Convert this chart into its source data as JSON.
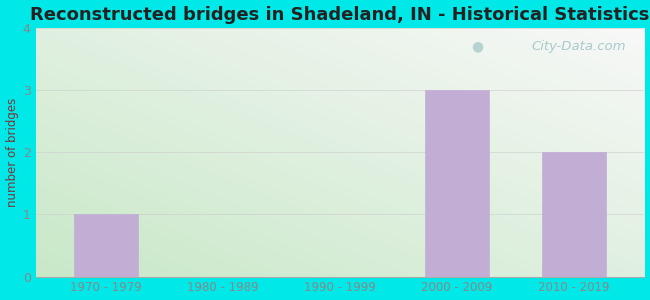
{
  "title": "Reconstructed bridges in Shadeland, IN - Historical Statistics",
  "categories": [
    "1970 - 1979",
    "1980 - 1989",
    "1990 - 1999",
    "2000 - 2009",
    "2010 - 2019"
  ],
  "values": [
    1,
    0,
    0,
    3,
    2
  ],
  "bar_color": "#c2aed4",
  "bar_edge_color": "#c2aed4",
  "ylabel": "number of bridges",
  "ylim": [
    0,
    4
  ],
  "yticks": [
    0,
    1,
    2,
    3,
    4
  ],
  "background_outer": "#00e8e8",
  "background_grad_bottom_left": "#c8e8c8",
  "background_grad_top_right": "#f8f8f8",
  "grid_color": "#cccccc",
  "title_color": "#222222",
  "axis_label_color": "#7a3535",
  "tick_label_color": "#888888",
  "watermark_text": "City-Data.com",
  "watermark_color": "#a8caca",
  "title_fontsize": 13,
  "bar_width": 0.55
}
